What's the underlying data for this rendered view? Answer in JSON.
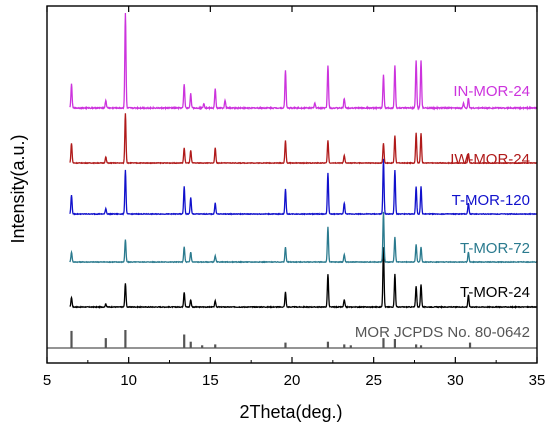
{
  "chart_data": {
    "type": "line",
    "xlabel": "2Theta(deg.)",
    "ylabel": "Intensity(a.u.)",
    "xlim": [
      5,
      35
    ],
    "xticks": [
      "5",
      "10",
      "15",
      "20",
      "25",
      "30",
      "35"
    ],
    "y_tick_labels": false,
    "reference": {
      "name": "MOR  JCPDS No. 80-0642",
      "color": "#555555",
      "peaks": [
        {
          "x": 6.5,
          "h": 0.95
        },
        {
          "x": 8.6,
          "h": 0.55
        },
        {
          "x": 9.8,
          "h": 1.0
        },
        {
          "x": 13.4,
          "h": 0.75
        },
        {
          "x": 13.8,
          "h": 0.35
        },
        {
          "x": 14.5,
          "h": 0.15
        },
        {
          "x": 15.3,
          "h": 0.2
        },
        {
          "x": 19.6,
          "h": 0.3
        },
        {
          "x": 22.2,
          "h": 0.35
        },
        {
          "x": 23.2,
          "h": 0.2
        },
        {
          "x": 23.6,
          "h": 0.15
        },
        {
          "x": 25.6,
          "h": 0.55
        },
        {
          "x": 26.3,
          "h": 0.5
        },
        {
          "x": 27.6,
          "h": 0.2
        },
        {
          "x": 27.9,
          "h": 0.15
        },
        {
          "x": 30.9,
          "h": 0.3
        }
      ]
    },
    "series": [
      {
        "name": "T-MOR-24",
        "color": "#000000",
        "peaks": [
          {
            "x": 6.5,
            "h": 0.16
          },
          {
            "x": 8.6,
            "h": 0.05
          },
          {
            "x": 9.8,
            "h": 0.4
          },
          {
            "x": 13.4,
            "h": 0.25
          },
          {
            "x": 13.8,
            "h": 0.12
          },
          {
            "x": 15.3,
            "h": 0.1
          },
          {
            "x": 19.6,
            "h": 0.25
          },
          {
            "x": 22.2,
            "h": 0.55
          },
          {
            "x": 23.2,
            "h": 0.12
          },
          {
            "x": 25.6,
            "h": 1.0
          },
          {
            "x": 26.3,
            "h": 0.55
          },
          {
            "x": 27.6,
            "h": 0.35
          },
          {
            "x": 27.9,
            "h": 0.38
          },
          {
            "x": 30.8,
            "h": 0.2
          }
        ]
      },
      {
        "name": "T-MOR-72",
        "color": "#2a7a8e",
        "peaks": [
          {
            "x": 6.5,
            "h": 0.2
          },
          {
            "x": 9.8,
            "h": 0.45
          },
          {
            "x": 13.4,
            "h": 0.3
          },
          {
            "x": 13.8,
            "h": 0.2
          },
          {
            "x": 15.3,
            "h": 0.12
          },
          {
            "x": 19.6,
            "h": 0.3
          },
          {
            "x": 22.2,
            "h": 0.7
          },
          {
            "x": 23.2,
            "h": 0.15
          },
          {
            "x": 25.6,
            "h": 1.0
          },
          {
            "x": 26.3,
            "h": 0.5
          },
          {
            "x": 27.6,
            "h": 0.35
          },
          {
            "x": 27.9,
            "h": 0.3
          },
          {
            "x": 30.8,
            "h": 0.2
          }
        ]
      },
      {
        "name": "T-MOR-120",
        "color": "#1111cc",
        "peaks": [
          {
            "x": 6.5,
            "h": 0.35
          },
          {
            "x": 8.6,
            "h": 0.1
          },
          {
            "x": 9.8,
            "h": 0.8
          },
          {
            "x": 13.4,
            "h": 0.5
          },
          {
            "x": 13.8,
            "h": 0.3
          },
          {
            "x": 15.3,
            "h": 0.2
          },
          {
            "x": 19.6,
            "h": 0.45
          },
          {
            "x": 22.2,
            "h": 0.75
          },
          {
            "x": 23.2,
            "h": 0.2
          },
          {
            "x": 25.6,
            "h": 1.0
          },
          {
            "x": 26.3,
            "h": 0.8
          },
          {
            "x": 27.6,
            "h": 0.5
          },
          {
            "x": 27.9,
            "h": 0.5
          },
          {
            "x": 30.8,
            "h": 0.2
          }
        ]
      },
      {
        "name": "IW-MOR-24",
        "color": "#b01a1a",
        "peaks": [
          {
            "x": 6.5,
            "h": 0.4
          },
          {
            "x": 8.6,
            "h": 0.12
          },
          {
            "x": 9.8,
            "h": 1.0
          },
          {
            "x": 13.4,
            "h": 0.3
          },
          {
            "x": 13.8,
            "h": 0.25
          },
          {
            "x": 15.3,
            "h": 0.3
          },
          {
            "x": 19.6,
            "h": 0.45
          },
          {
            "x": 22.2,
            "h": 0.45
          },
          {
            "x": 23.2,
            "h": 0.15
          },
          {
            "x": 25.6,
            "h": 0.4
          },
          {
            "x": 26.3,
            "h": 0.55
          },
          {
            "x": 27.6,
            "h": 0.6
          },
          {
            "x": 27.9,
            "h": 0.6
          },
          {
            "x": 30.8,
            "h": 0.2
          }
        ]
      },
      {
        "name": "IN-MOR-24",
        "color": "#cc33dd",
        "peaks": [
          {
            "x": 6.5,
            "h": 0.25
          },
          {
            "x": 8.6,
            "h": 0.08
          },
          {
            "x": 9.8,
            "h": 1.0
          },
          {
            "x": 13.4,
            "h": 0.25
          },
          {
            "x": 13.8,
            "h": 0.15
          },
          {
            "x": 14.6,
            "h": 0.05
          },
          {
            "x": 15.3,
            "h": 0.2
          },
          {
            "x": 15.9,
            "h": 0.08
          },
          {
            "x": 19.6,
            "h": 0.4
          },
          {
            "x": 21.4,
            "h": 0.05
          },
          {
            "x": 22.2,
            "h": 0.45
          },
          {
            "x": 23.2,
            "h": 0.1
          },
          {
            "x": 25.6,
            "h": 0.35
          },
          {
            "x": 26.3,
            "h": 0.45
          },
          {
            "x": 27.6,
            "h": 0.5
          },
          {
            "x": 27.9,
            "h": 0.5
          },
          {
            "x": 30.5,
            "h": 0.05
          },
          {
            "x": 30.8,
            "h": 0.1
          }
        ]
      }
    ]
  }
}
